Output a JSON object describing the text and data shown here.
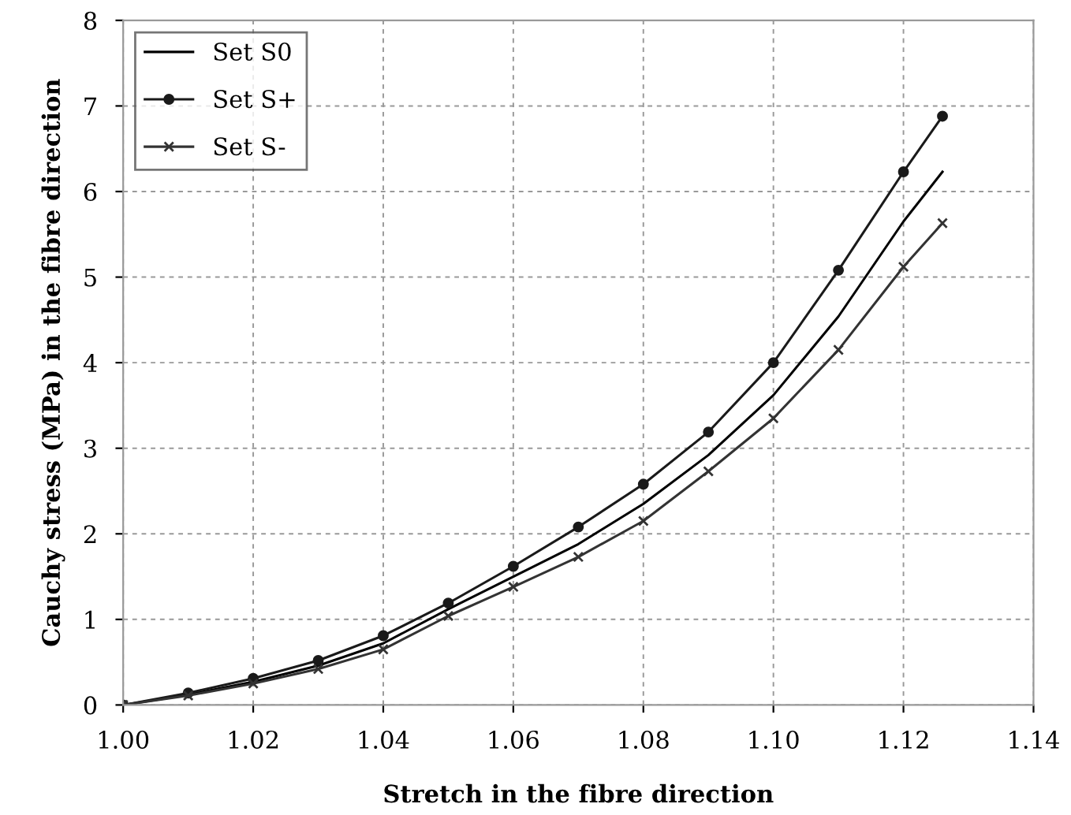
{
  "chart_data": {
    "type": "line",
    "xlabel": "Stretch in the fibre direction",
    "ylabel": "Cauchy stress (MPa) in the fibre direction",
    "x": [
      1.0,
      1.01,
      1.02,
      1.03,
      1.04,
      1.05,
      1.06,
      1.07,
      1.08,
      1.09,
      1.1,
      1.11,
      1.12,
      1.126
    ],
    "series": [
      {
        "name": "Set S0",
        "color": "#000000",
        "marker": "none",
        "values": [
          0,
          0.12,
          0.27,
          0.46,
          0.72,
          1.12,
          1.5,
          1.88,
          2.35,
          2.92,
          3.62,
          4.54,
          5.65,
          6.23
        ]
      },
      {
        "name": "Set S+",
        "color": "#1a1a1a",
        "marker": "circle",
        "values": [
          0,
          0.14,
          0.31,
          0.52,
          0.81,
          1.19,
          1.62,
          2.08,
          2.58,
          3.19,
          4.0,
          5.08,
          6.23,
          6.88
        ]
      },
      {
        "name": "Set S-",
        "color": "#333333",
        "marker": "cross",
        "values": [
          0,
          0.11,
          0.25,
          0.42,
          0.65,
          1.04,
          1.38,
          1.73,
          2.15,
          2.73,
          3.35,
          4.15,
          5.12,
          5.63
        ]
      }
    ],
    "xlim": [
      1.0,
      1.14
    ],
    "xticks": [
      {
        "value": 1.0,
        "label": "1.00"
      },
      {
        "value": 1.02,
        "label": "1.02"
      },
      {
        "value": 1.04,
        "label": "1.04"
      },
      {
        "value": 1.06,
        "label": "1.06"
      },
      {
        "value": 1.08,
        "label": "1.08"
      },
      {
        "value": 1.1,
        "label": "1.10"
      },
      {
        "value": 1.12,
        "label": "1.12"
      },
      {
        "value": 1.14,
        "label": "1.14"
      }
    ],
    "ylim": [
      0,
      8
    ],
    "yticks": [
      0,
      1,
      2,
      3,
      4,
      5,
      6,
      7,
      8
    ],
    "grid": true,
    "legend": "top left",
    "line_style": "solid"
  }
}
